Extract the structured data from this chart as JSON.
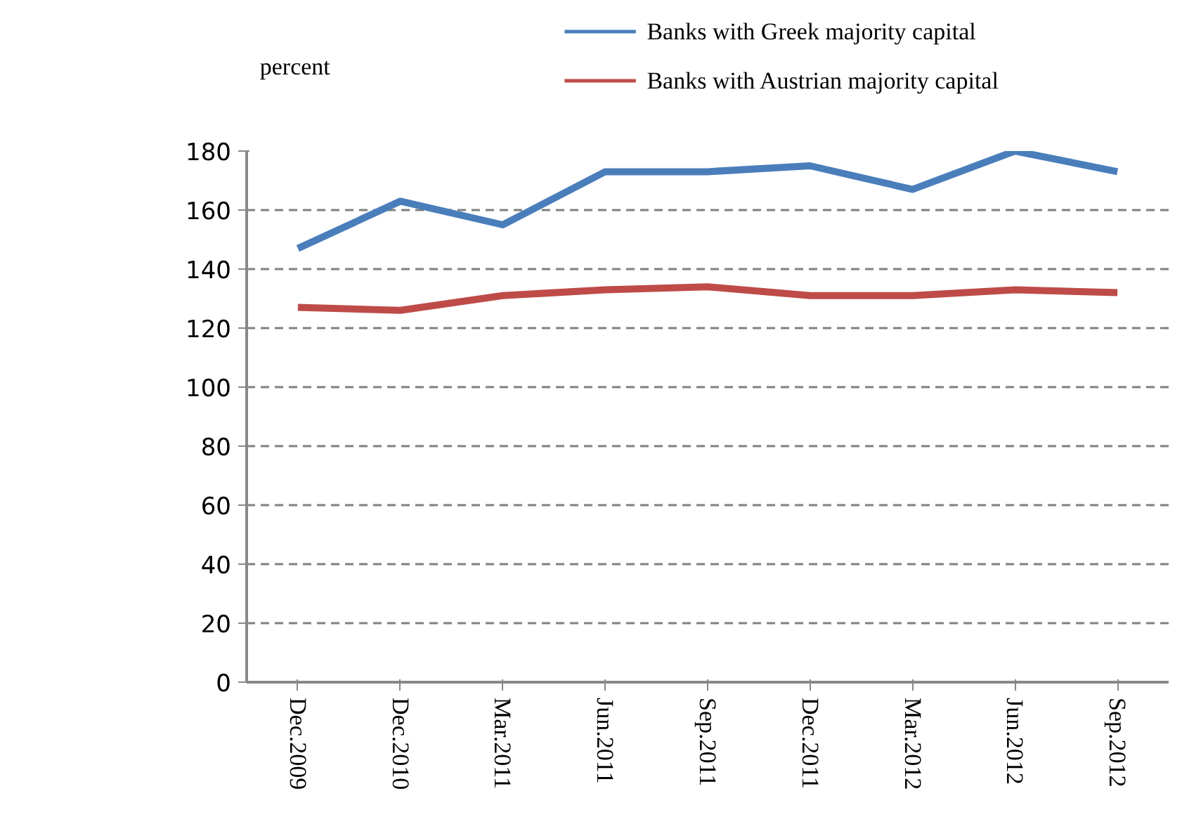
{
  "chart_data": {
    "type": "line",
    "ylabel": "percent",
    "categories": [
      "Dec.2009",
      "Dec.2010",
      "Mar.2011",
      "Jun.2011",
      "Sep.2011",
      "Dec.2011",
      "Mar.2012",
      "Jun.2012",
      "Sep.2012"
    ],
    "series": [
      {
        "name": "Banks with Greek majority capital",
        "color": "#4a7ebb",
        "values": [
          147,
          163,
          155,
          173,
          173,
          175,
          167,
          180,
          173
        ]
      },
      {
        "name": "Banks with Austrian majority capital",
        "color": "#be4b48",
        "values": [
          127,
          126,
          131,
          133,
          134,
          131,
          131,
          133,
          132
        ]
      }
    ],
    "ylim": [
      0,
      180
    ],
    "yticks": [
      0,
      20,
      40,
      60,
      80,
      100,
      120,
      140,
      160,
      180
    ],
    "grid": "y",
    "legend": "top",
    "marker": "none",
    "line_style": "solid"
  }
}
